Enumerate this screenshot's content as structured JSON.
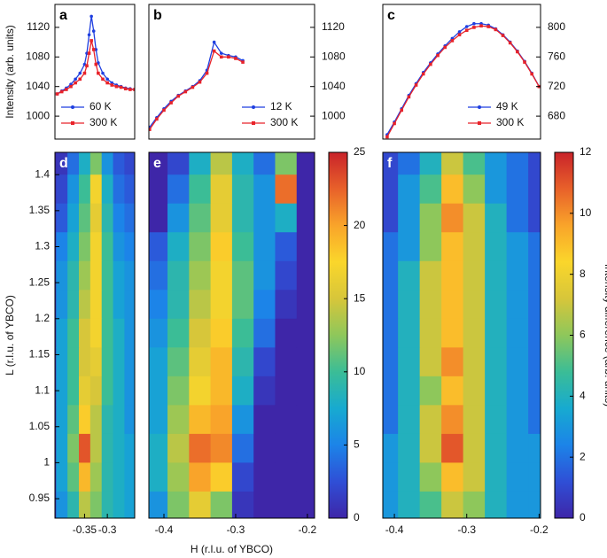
{
  "chart_data": [
    {
      "type": "line",
      "panel": "a",
      "ylabel": "Intensity (arb. units)",
      "x": [
        -0.41,
        -0.4,
        -0.39,
        -0.38,
        -0.37,
        -0.36,
        -0.35,
        -0.345,
        -0.34,
        -0.335,
        -0.33,
        -0.325,
        -0.32,
        -0.31,
        -0.3,
        -0.29,
        -0.28,
        -0.27,
        -0.26,
        -0.25,
        -0.24
      ],
      "series": [
        {
          "name": "60 K",
          "color": "#1f3fe0",
          "marker": "circle",
          "values": [
            1030,
            1034,
            1038,
            1043,
            1050,
            1058,
            1070,
            1085,
            1110,
            1135,
            1115,
            1090,
            1072,
            1058,
            1050,
            1045,
            1042,
            1040,
            1038,
            1037,
            1036
          ]
        },
        {
          "name": "300 K",
          "color": "#e8232a",
          "marker": "square",
          "values": [
            1030,
            1033,
            1036,
            1040,
            1045,
            1050,
            1058,
            1068,
            1085,
            1102,
            1090,
            1070,
            1058,
            1050,
            1045,
            1042,
            1040,
            1039,
            1037,
            1036,
            1036
          ]
        }
      ],
      "xlim": [
        -0.415,
        -0.24
      ],
      "ylim": [
        969,
        1151
      ],
      "yticks": [
        1000,
        1040,
        1080,
        1120
      ],
      "yaxis_side": "left",
      "legend": "lower center"
    },
    {
      "type": "line",
      "panel": "b",
      "x": [
        -0.42,
        -0.41,
        -0.4,
        -0.39,
        -0.38,
        -0.37,
        -0.36,
        -0.35,
        -0.34,
        -0.33,
        -0.32,
        -0.31,
        -0.3,
        -0.29
      ],
      "series": [
        {
          "name": "12 K",
          "color": "#1f3fe0",
          "marker": "circle",
          "values": [
            985,
            998,
            1010,
            1020,
            1028,
            1034,
            1040,
            1048,
            1062,
            1100,
            1085,
            1082,
            1080,
            1075
          ]
        },
        {
          "name": "300 K",
          "color": "#e8232a",
          "marker": "square",
          "values": [
            982,
            996,
            1008,
            1018,
            1027,
            1033,
            1039,
            1046,
            1058,
            1088,
            1080,
            1080,
            1078,
            1073
          ]
        }
      ],
      "xlim": [
        -0.421,
        -0.19
      ],
      "ylim": [
        969,
        1151
      ],
      "yticks": [
        1000,
        1040,
        1080,
        1120
      ],
      "yaxis_side": "right",
      "legend": "lower right"
    },
    {
      "type": "line",
      "panel": "c",
      "x": [
        -0.41,
        -0.4,
        -0.39,
        -0.38,
        -0.37,
        -0.36,
        -0.35,
        -0.34,
        -0.33,
        -0.32,
        -0.31,
        -0.3,
        -0.29,
        -0.28,
        -0.27,
        -0.26,
        -0.25,
        -0.24,
        -0.23,
        -0.22,
        -0.21,
        -0.2
      ],
      "series": [
        {
          "name": "49 K",
          "color": "#1f3fe0",
          "marker": "circle",
          "values": [
            655,
            672,
            690,
            708,
            724,
            739,
            752,
            764,
            775,
            785,
            794,
            801,
            805,
            805,
            803,
            798,
            790,
            780,
            768,
            754,
            738,
            720
          ]
        },
        {
          "name": "300 K",
          "color": "#e8232a",
          "marker": "square",
          "values": [
            652,
            670,
            688,
            706,
            722,
            737,
            750,
            762,
            773,
            782,
            790,
            796,
            800,
            802,
            801,
            797,
            789,
            779,
            767,
            753,
            737,
            720
          ]
        }
      ],
      "xlim": [
        -0.416,
        -0.198
      ],
      "ylim": [
        649,
        831
      ],
      "yticks": [
        680,
        720,
        760,
        800
      ],
      "yaxis_side": "right",
      "legend": "lower right"
    },
    {
      "type": "heatmap",
      "panel": "d",
      "ylabel": "L (r.l.u. of YBCO)",
      "x": [
        -0.4,
        -0.375,
        -0.35,
        -0.325,
        -0.3,
        -0.275,
        -0.25
      ],
      "y": [
        1.42,
        1.38,
        1.34,
        1.3,
        1.26,
        1.22,
        1.18,
        1.14,
        1.1,
        1.06,
        1.02,
        0.98,
        0.94
      ],
      "z": [
        [
          1,
          4,
          8,
          12,
          6,
          3,
          2
        ],
        [
          2,
          6,
          10,
          17,
          8,
          4,
          3
        ],
        [
          3,
          7,
          11,
          16,
          9,
          5,
          4
        ],
        [
          5,
          8,
          12,
          17,
          10,
          6,
          5
        ],
        [
          6,
          9,
          13,
          17,
          10,
          7,
          6
        ],
        [
          6,
          9,
          14,
          17,
          10,
          7,
          6
        ],
        [
          7,
          10,
          15,
          17,
          10,
          8,
          6
        ],
        [
          7,
          10,
          15,
          16,
          10,
          8,
          6
        ],
        [
          7,
          10,
          16,
          15,
          10,
          8,
          6
        ],
        [
          7,
          11,
          18,
          14,
          9,
          8,
          6
        ],
        [
          7,
          12,
          23,
          14,
          9,
          8,
          7
        ],
        [
          7,
          11,
          19,
          13,
          9,
          8,
          7
        ],
        [
          6,
          9,
          14,
          12,
          9,
          8,
          7
        ]
      ],
      "xlim": [
        -0.415,
        -0.24
      ],
      "ylim": [
        0.923,
        1.431
      ],
      "xticks": [
        -0.35,
        -0.3
      ],
      "yticks": [
        0.95,
        1,
        1.05,
        1.1,
        1.15,
        1.2,
        1.25,
        1.3,
        1.35,
        1.4
      ],
      "yaxis_side": "left",
      "clim": [
        0,
        25
      ],
      "colorbar": false,
      "colormap": [
        "#3e26a8",
        "#2f4fd6",
        "#1c84e8",
        "#17aad0",
        "#3bbd96",
        "#8ec75b",
        "#d7c63a",
        "#fad62b",
        "#f9a42a",
        "#e8612a",
        "#c9232a"
      ]
    },
    {
      "type": "heatmap",
      "panel": "e",
      "xlabel": "H (r.l.u. of YBCO)",
      "x": [
        -0.41,
        -0.38,
        -0.35,
        -0.32,
        -0.29,
        -0.26,
        -0.23,
        -0.2
      ],
      "y": [
        1.42,
        1.38,
        1.34,
        1.3,
        1.26,
        1.22,
        1.18,
        1.14,
        1.1,
        1.06,
        1.02,
        0.98,
        0.94
      ],
      "z": [
        [
          0,
          2,
          8,
          14,
          8,
          4,
          12,
          0
        ],
        [
          0,
          4,
          10,
          16,
          9,
          6,
          22,
          0
        ],
        [
          0,
          6,
          11,
          16,
          9,
          6,
          8,
          0
        ],
        [
          3,
          8,
          12,
          18,
          10,
          6,
          3,
          0
        ],
        [
          4,
          9,
          13,
          17,
          11,
          6,
          2,
          0
        ],
        [
          5,
          9,
          14,
          17,
          11,
          5,
          1,
          0
        ],
        [
          6,
          10,
          15,
          18,
          10,
          4,
          0,
          0
        ],
        [
          7,
          11,
          16,
          19,
          9,
          2,
          0,
          0
        ],
        [
          7,
          12,
          17,
          19,
          8,
          1,
          0,
          0
        ],
        [
          7,
          13,
          19,
          20,
          6,
          0,
          0,
          0
        ],
        [
          8,
          14,
          22,
          21,
          4,
          0,
          0,
          0
        ],
        [
          8,
          13,
          20,
          18,
          2,
          0,
          0,
          0
        ],
        [
          6,
          12,
          16,
          12,
          1,
          0,
          0,
          0
        ]
      ],
      "xlim": [
        -0.421,
        -0.19
      ],
      "ylim": [
        0.923,
        1.431
      ],
      "xticks": [
        -0.4,
        -0.3,
        -0.2
      ],
      "clim": [
        0,
        25
      ],
      "cticks": [
        0,
        5,
        10,
        15,
        20,
        25
      ],
      "colorbar": true,
      "colormap": [
        "#3e26a8",
        "#2f4fd6",
        "#1c84e8",
        "#17aad0",
        "#3bbd96",
        "#8ec75b",
        "#d7c63a",
        "#fad62b",
        "#f9a42a",
        "#e8612a",
        "#c9232a"
      ]
    },
    {
      "type": "heatmap",
      "panel": "f",
      "clabel": "Intensity difference (arb. units)",
      "x": [
        -0.41,
        -0.38,
        -0.35,
        -0.32,
        -0.29,
        -0.26,
        -0.23,
        -0.2
      ],
      "y": [
        1.42,
        1.38,
        1.34,
        1.3,
        1.26,
        1.22,
        1.18,
        1.14,
        1.1,
        1.06,
        1.02,
        0.98,
        0.94
      ],
      "z": [
        [
          1,
          2,
          4,
          7,
          5,
          3,
          2,
          1
        ],
        [
          1,
          3,
          5,
          9,
          6,
          3,
          2,
          1
        ],
        [
          1,
          3,
          6,
          10,
          7,
          4,
          2,
          1
        ],
        [
          2,
          3,
          6,
          9,
          7,
          4,
          3,
          2
        ],
        [
          2,
          4,
          7,
          9,
          7,
          4,
          3,
          2
        ],
        [
          2,
          4,
          7,
          9,
          7,
          4,
          3,
          2
        ],
        [
          2,
          4,
          7,
          9,
          7,
          4,
          3,
          2
        ],
        [
          2,
          4,
          7,
          10,
          7,
          4,
          3,
          2
        ],
        [
          2,
          4,
          6,
          9,
          7,
          4,
          3,
          2
        ],
        [
          2,
          4,
          7,
          10,
          7,
          4,
          3,
          2
        ],
        [
          3,
          4,
          7,
          11,
          7,
          4,
          3,
          3
        ],
        [
          3,
          4,
          6,
          9,
          7,
          4,
          3,
          3
        ],
        [
          3,
          4,
          5,
          7,
          6,
          4,
          3,
          3
        ]
      ],
      "xlim": [
        -0.416,
        -0.198
      ],
      "ylim": [
        0.923,
        1.431
      ],
      "xticks": [
        -0.4,
        -0.3,
        -0.2
      ],
      "clim": [
        0,
        12
      ],
      "cticks": [
        0,
        2,
        4,
        6,
        8,
        10,
        12
      ],
      "colorbar": true,
      "colormap": [
        "#3e26a8",
        "#2f4fd6",
        "#1c84e8",
        "#17aad0",
        "#3bbd96",
        "#8ec75b",
        "#d7c63a",
        "#fad62b",
        "#f9a42a",
        "#e8612a",
        "#c9232a"
      ]
    }
  ]
}
